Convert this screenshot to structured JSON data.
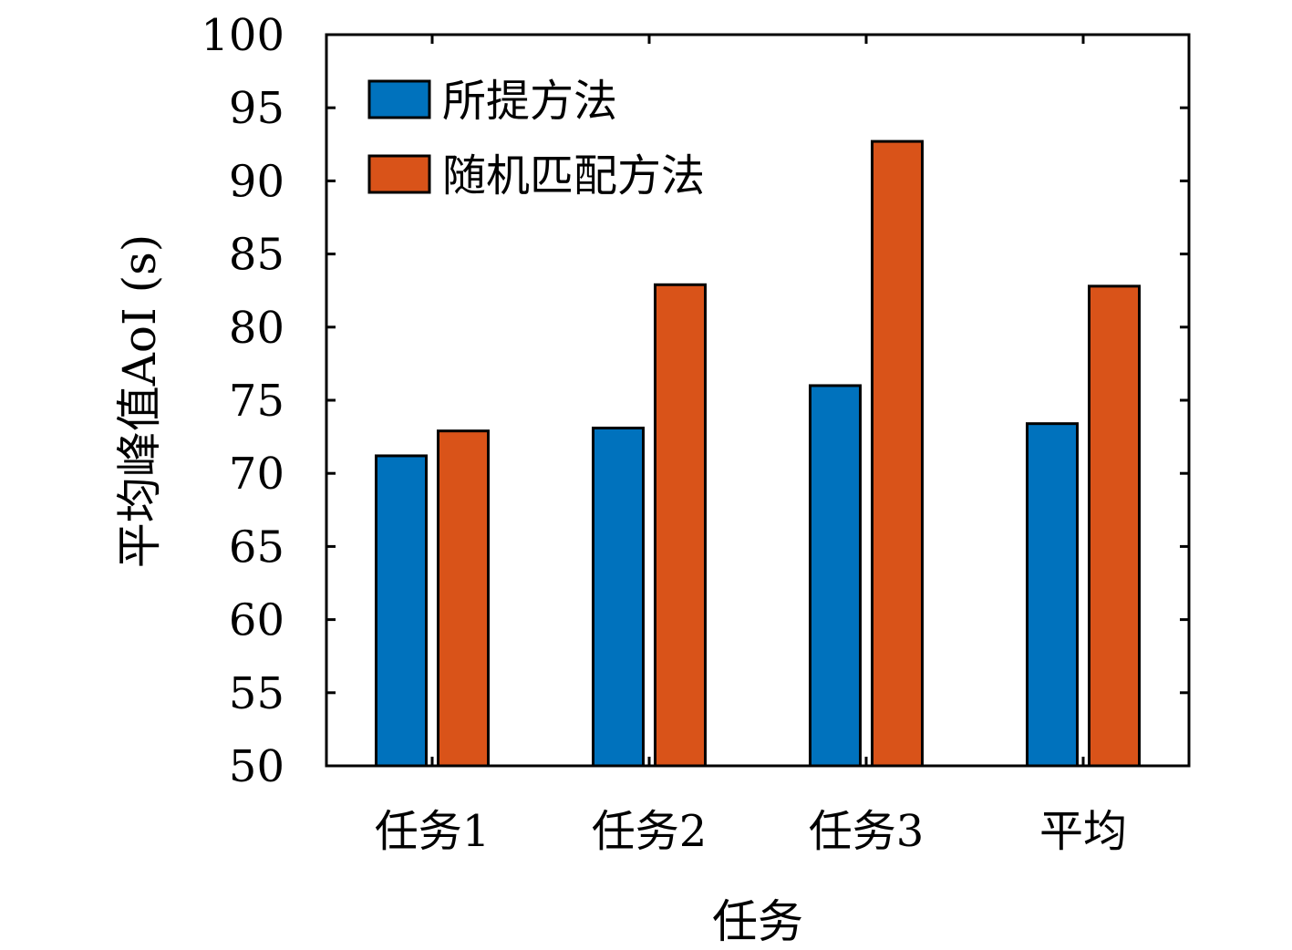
{
  "chart_data": {
    "type": "bar",
    "categories": [
      "任务1",
      "任务2",
      "任务3",
      "平均"
    ],
    "series": [
      {
        "name": "所提方法",
        "color": "#0072BD",
        "values": [
          71.2,
          73.1,
          76.0,
          73.4
        ]
      },
      {
        "name": "随机匹配方法",
        "color": "#D95319",
        "values": [
          72.9,
          82.9,
          92.7,
          82.8
        ]
      }
    ],
    "xlabel": "任务",
    "ylabel": "平均峰值AoI (s)",
    "ylim": [
      50,
      100
    ],
    "yticks": [
      "50",
      "55",
      "60",
      "65",
      "70",
      "75",
      "80",
      "85",
      "90",
      "95",
      "100"
    ],
    "grid": false,
    "legend": "top-left"
  }
}
